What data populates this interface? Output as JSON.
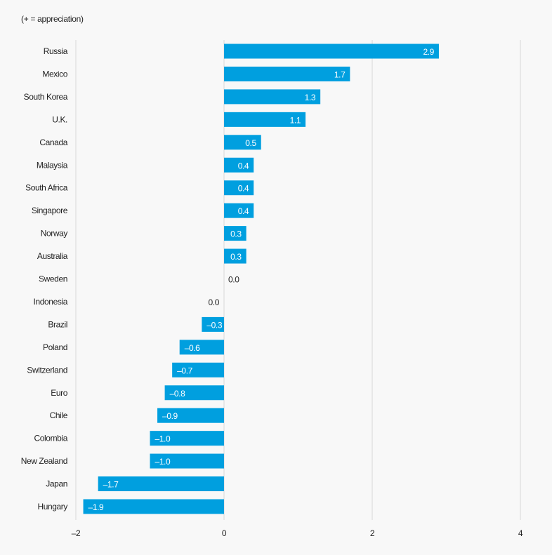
{
  "chart_data": {
    "type": "bar",
    "orientation": "horizontal",
    "subtitle": "(+ = appreciation)",
    "categories": [
      "Russia",
      "Mexico",
      "South Korea",
      "U.K.",
      "Canada",
      "Malaysia",
      "South Africa",
      "Singapore",
      "Norway",
      "Australia",
      "Sweden",
      "Indonesia",
      "Brazil",
      "Poland",
      "Switzerland",
      "Euro",
      "Chile",
      "Colombia",
      "New Zealand",
      "Japan",
      "Hungary"
    ],
    "values": [
      2.9,
      1.7,
      1.3,
      1.1,
      0.5,
      0.4,
      0.4,
      0.4,
      0.3,
      0.3,
      0.0,
      -0.0,
      -0.3,
      -0.6,
      -0.7,
      -0.8,
      -0.9,
      -1.0,
      -1.0,
      -1.7,
      -1.9
    ],
    "labels": [
      "2.9",
      "1.7",
      "1.3",
      "1.1",
      "0.5",
      "0.4",
      "0.4",
      "0.4",
      "0.3",
      "0.3",
      "0.0",
      "0.0",
      "–0.3",
      "–0.6",
      "–0.7",
      "–0.8",
      "–0.9",
      "–1.0",
      "–1.0",
      "–1.7",
      "–1.9"
    ],
    "xlim": [
      -2,
      4
    ],
    "xticks": [
      "-2",
      "0",
      "2",
      "4"
    ],
    "grid": true,
    "bar_color": "#009fdf",
    "grid_color": "#d9d9d9"
  }
}
